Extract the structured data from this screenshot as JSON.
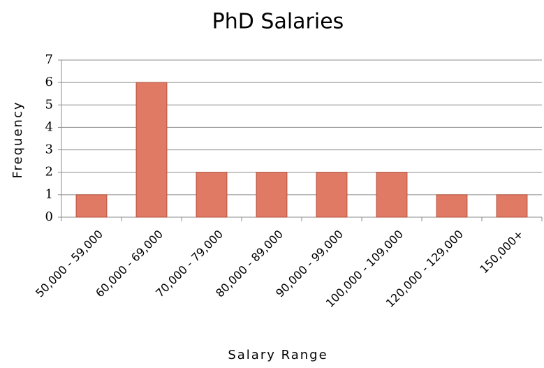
{
  "chart_data": {
    "type": "bar",
    "title": "PhD Salaries",
    "x_label": "Salary Range",
    "y_label": "Frequency",
    "categories": [
      "50,000 - 59,000",
      "60,000 - 69,000",
      "70,000 - 79,000",
      "80,000 - 89,000",
      "90,000 - 99,000",
      "100,000 - 109,000",
      "120,000 - 129,000",
      "150,000+"
    ],
    "values": [
      1,
      6,
      2,
      2,
      2,
      2,
      1,
      1
    ],
    "color": "#e07a64",
    "ylim": [
      0,
      7
    ],
    "yticks": [
      0,
      1,
      2,
      3,
      4,
      5,
      6,
      7
    ],
    "grid": true
  }
}
